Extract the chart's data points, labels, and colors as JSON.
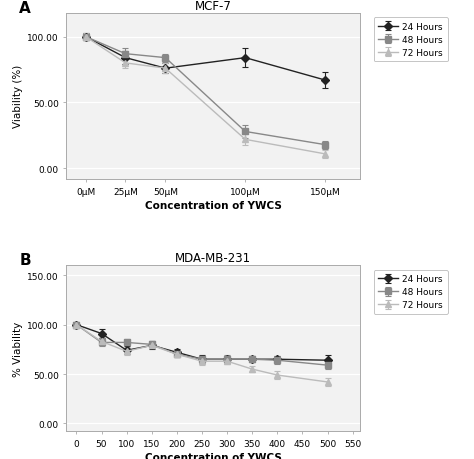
{
  "panel_A": {
    "title": "MCF-7",
    "xlabel": "Concentration of YWCS",
    "ylabel": "Viability (%)",
    "x_ticks": [
      0,
      25,
      50,
      100,
      150
    ],
    "x_tick_labels": [
      "0μM",
      "25μM",
      "50μM",
      "100μM",
      "150μM"
    ],
    "xlim": [
      -12,
      172
    ],
    "ylim": [
      -8,
      118
    ],
    "yticks": [
      0.0,
      50.0,
      100.0
    ],
    "ytick_labels": [
      "0.00",
      "50.00",
      "100.00"
    ],
    "series": [
      {
        "label": "24 Hours",
        "color": "#222222",
        "marker": "D",
        "x": [
          0,
          25,
          50,
          100,
          150
        ],
        "y": [
          100.0,
          84.0,
          76.0,
          84.0,
          67.0
        ],
        "yerr": [
          3.0,
          5.0,
          4.0,
          7.0,
          6.0
        ]
      },
      {
        "label": "48 Hours",
        "color": "#888888",
        "marker": "s",
        "x": [
          0,
          25,
          50,
          100,
          150
        ],
        "y": [
          100.0,
          87.0,
          84.0,
          28.0,
          18.0
        ],
        "yerr": [
          2.0,
          4.0,
          3.0,
          5.0,
          3.0
        ]
      },
      {
        "label": "72 Hours",
        "color": "#bbbbbb",
        "marker": "^",
        "x": [
          0,
          25,
          50,
          100,
          150
        ],
        "y": [
          100.0,
          80.0,
          76.0,
          22.0,
          11.0
        ],
        "yerr": [
          2.5,
          4.0,
          4.0,
          4.0,
          3.0
        ]
      }
    ]
  },
  "panel_B": {
    "title": "MDA-MB-231",
    "xlabel": "Concentration of YWCS",
    "ylabel": "% Viability",
    "x_ticks": [
      0,
      50,
      100,
      150,
      200,
      250,
      300,
      350,
      400,
      450,
      500,
      550
    ],
    "xlim": [
      -20,
      565
    ],
    "ylim": [
      -8,
      160
    ],
    "yticks": [
      0.0,
      50.0,
      100.0,
      150.0
    ],
    "ytick_labels": [
      "0.00",
      "50.00",
      "100.00",
      "150.00"
    ],
    "series": [
      {
        "label": "24 Hours",
        "color": "#222222",
        "marker": "D",
        "x": [
          0,
          50,
          100,
          150,
          200,
          250,
          300,
          350,
          400,
          500
        ],
        "y": [
          100.0,
          91.0,
          74.0,
          79.0,
          72.0,
          65.0,
          65.0,
          65.0,
          65.0,
          64.0
        ],
        "yerr": [
          3.0,
          5.0,
          4.0,
          4.0,
          3.0,
          4.0,
          3.0,
          3.0,
          3.0,
          5.0
        ]
      },
      {
        "label": "48 Hours",
        "color": "#888888",
        "marker": "s",
        "x": [
          0,
          50,
          100,
          150,
          200,
          250,
          300,
          350,
          400,
          500
        ],
        "y": [
          100.0,
          82.0,
          82.0,
          80.0,
          70.0,
          65.0,
          65.0,
          65.0,
          64.0,
          59.0
        ],
        "yerr": [
          2.0,
          4.0,
          3.0,
          3.0,
          3.0,
          3.0,
          4.0,
          3.0,
          4.0,
          4.0
        ]
      },
      {
        "label": "72 Hours",
        "color": "#bbbbbb",
        "marker": "^",
        "x": [
          0,
          50,
          100,
          150,
          200,
          250,
          300,
          350,
          400,
          500
        ],
        "y": [
          100.0,
          83.0,
          73.0,
          79.0,
          70.0,
          63.0,
          63.0,
          55.0,
          49.0,
          42.0
        ],
        "yerr": [
          3.0,
          4.0,
          4.0,
          3.0,
          3.0,
          4.0,
          3.0,
          3.0,
          4.0,
          4.0
        ]
      }
    ]
  },
  "plot_bg": "#f2f2f2",
  "fig_bg": "#ffffff",
  "border_color": "#aaaaaa",
  "grid_color": "#ffffff"
}
